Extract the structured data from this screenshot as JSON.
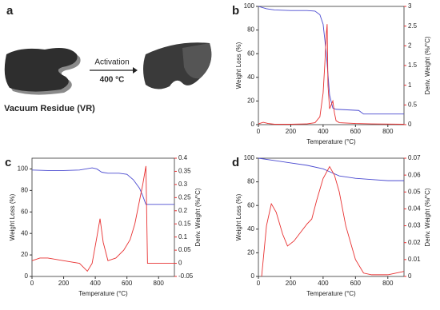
{
  "diagram": {
    "panel_label": "a",
    "arrow_label": "Activation",
    "arrow_sublabel": "400 °C",
    "caption": "Vacuum Residue (VR)"
  },
  "chart_data": [
    {
      "type": "line",
      "panel_label": "b",
      "x_label": "Temperature (°C)",
      "y_label": "Weight Loss (%)",
      "y2_label": "Deriv. Weight (%/°C)",
      "xlim": [
        0,
        900
      ],
      "xticks": [
        0,
        200,
        400,
        600,
        800
      ],
      "ylim": [
        0,
        100
      ],
      "yticks": [
        0,
        20,
        40,
        60,
        80,
        100
      ],
      "y2lim": [
        0,
        3
      ],
      "y2ticks": [
        0,
        0.5,
        1,
        1.5,
        2,
        2.5,
        3
      ],
      "series": [
        {
          "color": "#4a4ad0",
          "x": [
            0,
            50,
            100,
            200,
            300,
            350,
            380,
            400,
            420,
            440,
            460,
            480,
            550,
            620,
            650,
            700,
            800,
            900
          ],
          "values": [
            100,
            98,
            97,
            96.5,
            96.5,
            96,
            93,
            85,
            60,
            25,
            14,
            13,
            12.5,
            12,
            9,
            9,
            9,
            9
          ]
        },
        {
          "color": "#e83030",
          "axis": "y2",
          "x": [
            0,
            30,
            60,
            100,
            200,
            300,
            350,
            380,
            400,
            410,
            420,
            425,
            430,
            440,
            450,
            460,
            470,
            480,
            500,
            600,
            700,
            900
          ],
          "values": [
            0.02,
            0.06,
            0.03,
            0.01,
            0.01,
            0.02,
            0.05,
            0.2,
            0.8,
            1.5,
            2.3,
            2.55,
            1.0,
            0.4,
            0.5,
            0.6,
            0.3,
            0.1,
            0.05,
            0.03,
            0.02,
            0.01
          ]
        }
      ]
    },
    {
      "type": "line",
      "panel_label": "c",
      "x_label": "Temperature (°C)",
      "y_label": "Weight Loss (%)",
      "y2_label": "Deriv. Weight (%/°C)",
      "xlim": [
        0,
        900
      ],
      "xticks": [
        0,
        200,
        400,
        600,
        800
      ],
      "ylim": [
        0,
        110
      ],
      "yticks": [
        0,
        20,
        40,
        60,
        80,
        100
      ],
      "y2lim": [
        -0.05,
        0.4
      ],
      "y2ticks": [
        -0.05,
        0,
        0.05,
        0.1,
        0.15,
        0.2,
        0.25,
        0.3,
        0.35,
        0.4
      ],
      "series": [
        {
          "color": "#4a4ad0",
          "x": [
            0,
            100,
            200,
            300,
            380,
            410,
            440,
            480,
            550,
            600,
            640,
            680,
            700,
            720,
            800,
            900
          ],
          "values": [
            99,
            98.5,
            98.5,
            99,
            101,
            100,
            97,
            96,
            96,
            95,
            90,
            82,
            75,
            67,
            67,
            67
          ]
        },
        {
          "color": "#e83030",
          "axis": "y2",
          "x": [
            0,
            50,
            100,
            200,
            300,
            350,
            380,
            410,
            430,
            450,
            480,
            530,
            580,
            620,
            650,
            680,
            700,
            720,
            730,
            800,
            900
          ],
          "values": [
            0.01,
            0.02,
            0.02,
            0.01,
            0.0,
            -0.03,
            0.0,
            0.1,
            0.17,
            0.08,
            0.01,
            0.02,
            0.05,
            0.09,
            0.15,
            0.24,
            0.3,
            0.37,
            0.0,
            0.0,
            0.0
          ]
        }
      ]
    },
    {
      "type": "line",
      "panel_label": "d",
      "x_label": "Temperature (°C)",
      "y_label": "Weight Loss (%)",
      "y2_label": "Deriv. Weight (%/°C)",
      "xlim": [
        0,
        900
      ],
      "xticks": [
        0,
        200,
        400,
        600,
        800
      ],
      "ylim": [
        0,
        100
      ],
      "yticks": [
        0,
        20,
        40,
        60,
        80,
        100
      ],
      "y2lim": [
        0,
        0.07
      ],
      "y2ticks": [
        0,
        0.01,
        0.02,
        0.03,
        0.04,
        0.05,
        0.06,
        0.07
      ],
      "series": [
        {
          "color": "#4a4ad0",
          "x": [
            0,
            100,
            200,
            300,
            400,
            450,
            500,
            600,
            700,
            800,
            900
          ],
          "values": [
            100,
            98,
            96,
            94,
            91,
            88,
            85,
            83,
            82,
            81,
            81
          ]
        },
        {
          "color": "#e83030",
          "axis": "y2",
          "x": [
            20,
            50,
            80,
            110,
            150,
            180,
            220,
            260,
            300,
            330,
            360,
            400,
            440,
            470,
            500,
            540,
            570,
            600,
            650,
            700,
            800,
            900
          ],
          "values": [
            0.0,
            0.03,
            0.043,
            0.038,
            0.025,
            0.018,
            0.021,
            0.026,
            0.031,
            0.034,
            0.045,
            0.058,
            0.065,
            0.06,
            0.05,
            0.03,
            0.02,
            0.01,
            0.002,
            0.001,
            0.001,
            0.003
          ]
        }
      ]
    }
  ]
}
